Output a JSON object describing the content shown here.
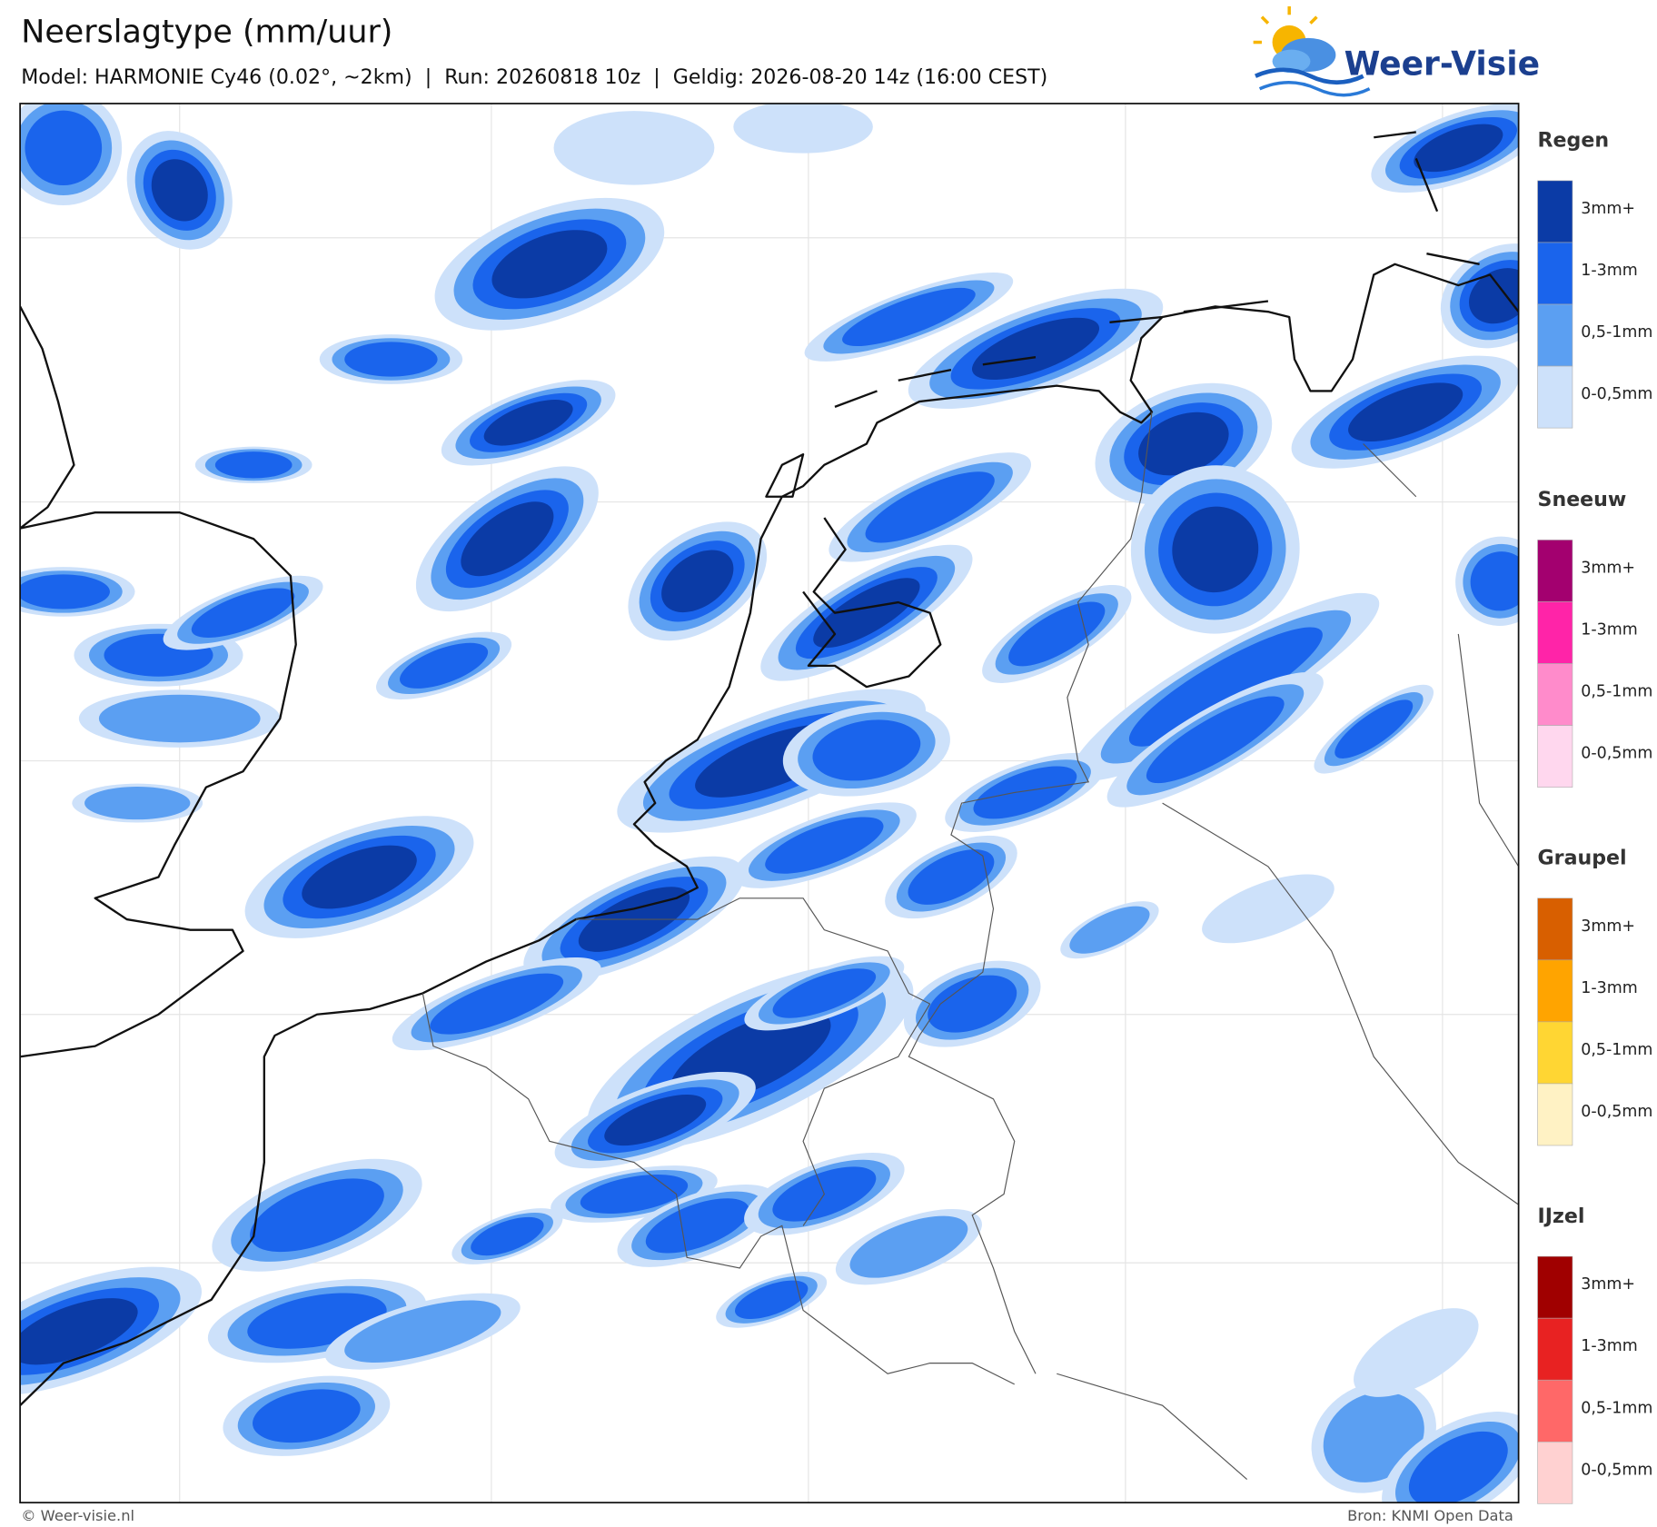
{
  "header": {
    "title": "Neerslagtype (mm/uur)",
    "subtitle": "Model: HARMONIE Cy46 (0.02°, ~2km)  |  Run: 20260818 10z  |  Geldig: 2026-08-20 14z (16:00 CEST)"
  },
  "logo": {
    "text": "Weer-Visie"
  },
  "legend": {
    "groups": [
      {
        "title": "Regen",
        "items": [
          {
            "label": "3mm+",
            "color": "#0b3ba6"
          },
          {
            "label": "1-3mm",
            "color": "#1a64ec"
          },
          {
            "label": "0,5-1mm",
            "color": "#5b9ff2"
          },
          {
            "label": "0-0,5mm",
            "color": "#cde1fa"
          }
        ]
      },
      {
        "title": "Sneeuw",
        "items": [
          {
            "label": "3mm+",
            "color": "#a3006f"
          },
          {
            "label": "1-3mm",
            "color": "#ff24a8"
          },
          {
            "label": "0,5-1mm",
            "color": "#ff8bcb"
          },
          {
            "label": "0-0,5mm",
            "color": "#ffd7ee"
          }
        ]
      },
      {
        "title": "Graupel",
        "items": [
          {
            "label": "3mm+",
            "color": "#d85f00"
          },
          {
            "label": "1-3mm",
            "color": "#ffa400"
          },
          {
            "label": "0,5-1mm",
            "color": "#ffd633"
          },
          {
            "label": "0-0,5mm",
            "color": "#fff2c4"
          }
        ]
      },
      {
        "title": "IJzel",
        "items": [
          {
            "label": "3mm+",
            "color": "#a00000"
          },
          {
            "label": "1-3mm",
            "color": "#e82222"
          },
          {
            "label": "0,5-1mm",
            "color": "#ff6868"
          },
          {
            "label": "0-0,5mm",
            "color": "#ffd1d1"
          }
        ]
      }
    ]
  },
  "footer": {
    "left": "© Weer-visie.nl",
    "right": "Bron: KNMI Open Data"
  }
}
